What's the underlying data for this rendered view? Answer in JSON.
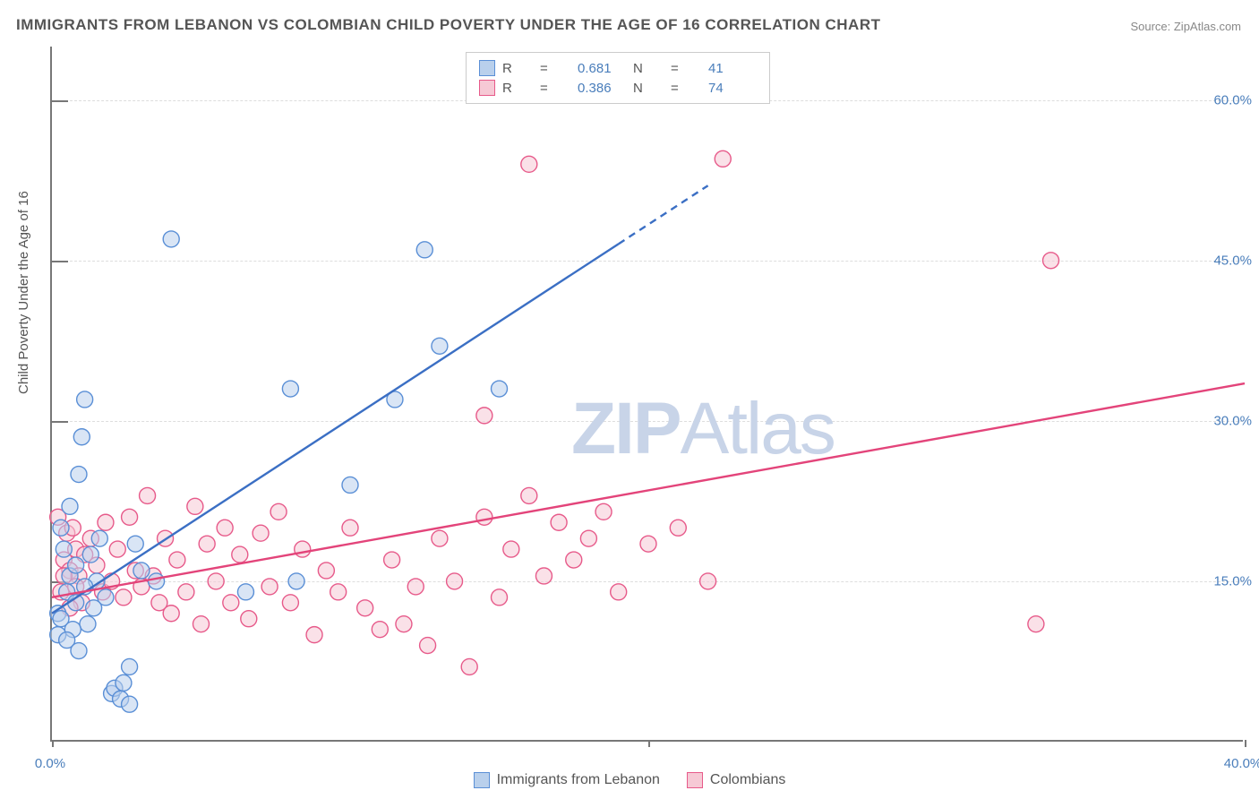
{
  "title": "IMMIGRANTS FROM LEBANON VS COLOMBIAN CHILD POVERTY UNDER THE AGE OF 16 CORRELATION CHART",
  "source_label": "Source: ZipAtlas.com",
  "ylabel": "Child Poverty Under the Age of 16",
  "watermark": {
    "bold": "ZIP",
    "rest": "Atlas"
  },
  "axes": {
    "xlim": [
      0,
      40
    ],
    "ylim": [
      0,
      65
    ],
    "xticks": [
      0,
      20,
      40
    ],
    "xtick_labels": [
      "0.0%",
      "",
      "40.0%"
    ],
    "yticks": [
      15,
      30,
      45,
      60
    ],
    "ytick_labels": [
      "15.0%",
      "30.0%",
      "45.0%",
      "60.0%"
    ],
    "grid_color": "#dddddd",
    "axis_color": "#777777"
  },
  "series": [
    {
      "key": "lebanon",
      "legend_label": "Immigrants from Lebanon",
      "fill": "#b9d0ec",
      "stroke": "#5a8fd6",
      "line_color": "#3b6fc4",
      "r_value": "0.681",
      "n_value": "41",
      "marker_radius": 9,
      "trend": {
        "x1": 0,
        "y1": 12.0,
        "x2": 22,
        "y2": 52.0,
        "dash_from_x": 19
      },
      "points": [
        [
          0.2,
          10.0
        ],
        [
          0.2,
          12.0
        ],
        [
          0.3,
          11.5
        ],
        [
          0.5,
          14.0
        ],
        [
          0.6,
          15.5
        ],
        [
          0.8,
          13.0
        ],
        [
          0.8,
          16.5
        ],
        [
          0.4,
          18.0
        ],
        [
          0.3,
          20.0
        ],
        [
          0.6,
          22.0
        ],
        [
          0.9,
          25.0
        ],
        [
          1.0,
          28.5
        ],
        [
          1.1,
          32.0
        ],
        [
          1.3,
          17.5
        ],
        [
          1.5,
          15.0
        ],
        [
          1.6,
          19.0
        ],
        [
          1.8,
          13.5
        ],
        [
          2.0,
          4.5
        ],
        [
          2.1,
          5.0
        ],
        [
          2.3,
          4.0
        ],
        [
          2.4,
          5.5
        ],
        [
          2.6,
          3.5
        ],
        [
          2.6,
          7.0
        ],
        [
          2.8,
          18.5
        ],
        [
          3.0,
          16.0
        ],
        [
          3.5,
          15.0
        ],
        [
          4.0,
          47.0
        ],
        [
          6.5,
          14.0
        ],
        [
          8.0,
          33.0
        ],
        [
          8.2,
          15.0
        ],
        [
          10.0,
          24.0
        ],
        [
          11.5,
          32.0
        ],
        [
          12.5,
          46.0
        ],
        [
          13.0,
          37.0
        ],
        [
          15.0,
          33.0
        ],
        [
          1.2,
          11.0
        ],
        [
          1.4,
          12.5
        ],
        [
          0.7,
          10.5
        ],
        [
          0.5,
          9.5
        ],
        [
          0.9,
          8.5
        ],
        [
          1.1,
          14.5
        ]
      ]
    },
    {
      "key": "colombians",
      "legend_label": "Colombians",
      "fill": "#f6c9d5",
      "stroke": "#e75a8a",
      "line_color": "#e3447a",
      "r_value": "0.386",
      "n_value": "74",
      "marker_radius": 9,
      "trend": {
        "x1": 0,
        "y1": 13.5,
        "x2": 40,
        "y2": 33.5,
        "dash_from_x": 40
      },
      "points": [
        [
          0.3,
          14.0
        ],
        [
          0.4,
          17.0
        ],
        [
          0.5,
          19.5
        ],
        [
          0.6,
          16.0
        ],
        [
          0.7,
          20.0
        ],
        [
          0.8,
          18.0
        ],
        [
          0.9,
          15.5
        ],
        [
          1.0,
          13.0
        ],
        [
          1.1,
          17.5
        ],
        [
          1.3,
          19.0
        ],
        [
          1.5,
          16.5
        ],
        [
          1.7,
          14.0
        ],
        [
          1.8,
          20.5
        ],
        [
          2.0,
          15.0
        ],
        [
          2.2,
          18.0
        ],
        [
          2.4,
          13.5
        ],
        [
          2.6,
          21.0
        ],
        [
          2.8,
          16.0
        ],
        [
          3.0,
          14.5
        ],
        [
          3.2,
          23.0
        ],
        [
          3.4,
          15.5
        ],
        [
          3.6,
          13.0
        ],
        [
          3.8,
          19.0
        ],
        [
          4.0,
          12.0
        ],
        [
          4.2,
          17.0
        ],
        [
          4.5,
          14.0
        ],
        [
          4.8,
          22.0
        ],
        [
          5.0,
          11.0
        ],
        [
          5.2,
          18.5
        ],
        [
          5.5,
          15.0
        ],
        [
          5.8,
          20.0
        ],
        [
          6.0,
          13.0
        ],
        [
          6.3,
          17.5
        ],
        [
          6.6,
          11.5
        ],
        [
          7.0,
          19.5
        ],
        [
          7.3,
          14.5
        ],
        [
          7.6,
          21.5
        ],
        [
          8.0,
          13.0
        ],
        [
          8.4,
          18.0
        ],
        [
          8.8,
          10.0
        ],
        [
          9.2,
          16.0
        ],
        [
          9.6,
          14.0
        ],
        [
          10.0,
          20.0
        ],
        [
          10.5,
          12.5
        ],
        [
          11.0,
          10.5
        ],
        [
          11.4,
          17.0
        ],
        [
          11.8,
          11.0
        ],
        [
          12.2,
          14.5
        ],
        [
          12.6,
          9.0
        ],
        [
          13.0,
          19.0
        ],
        [
          13.5,
          15.0
        ],
        [
          14.0,
          7.0
        ],
        [
          14.5,
          21.0
        ],
        [
          15.0,
          13.5
        ],
        [
          15.4,
          18.0
        ],
        [
          16.0,
          23.0
        ],
        [
          16.5,
          15.5
        ],
        [
          17.0,
          20.5
        ],
        [
          17.5,
          17.0
        ],
        [
          18.0,
          19.0
        ],
        [
          18.5,
          21.5
        ],
        [
          19.0,
          14.0
        ],
        [
          20.0,
          18.5
        ],
        [
          21.0,
          20.0
        ],
        [
          22.0,
          15.0
        ],
        [
          14.5,
          30.5
        ],
        [
          16.0,
          54.0
        ],
        [
          22.5,
          54.5
        ],
        [
          33.5,
          45.0
        ],
        [
          33.0,
          11.0
        ],
        [
          0.2,
          21.0
        ],
        [
          0.4,
          15.5
        ],
        [
          0.6,
          12.5
        ],
        [
          0.8,
          14.5
        ]
      ]
    }
  ],
  "legend_top": {
    "r_label": "R",
    "eq": "=",
    "n_label": "N"
  }
}
